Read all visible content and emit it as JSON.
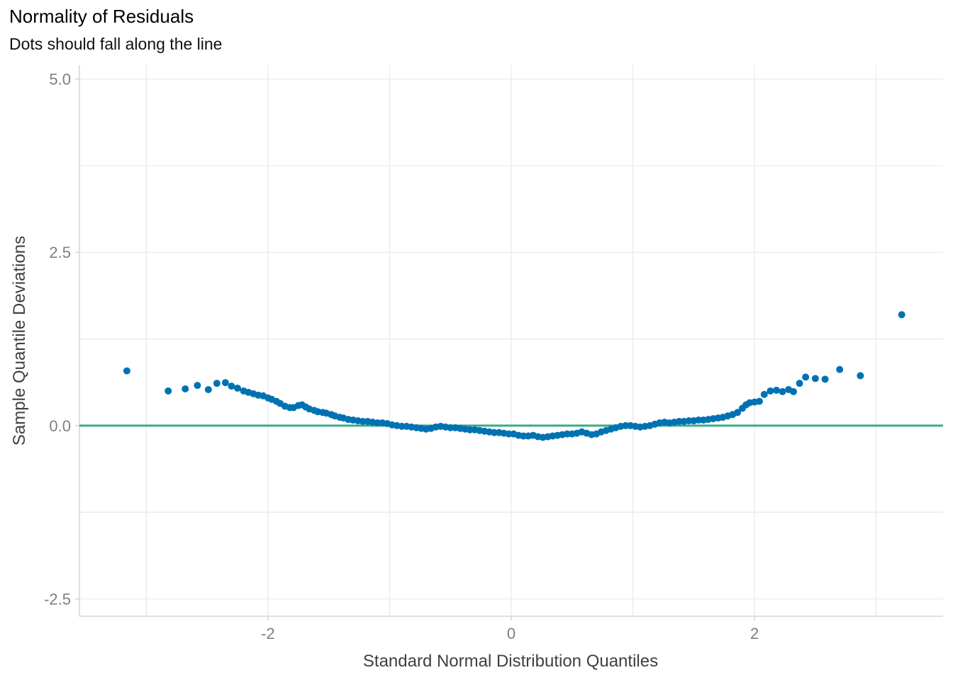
{
  "title": "Normality of Residuals",
  "subtitle": "Dots should fall along the line",
  "chart_data": {
    "type": "scatter",
    "title": "Normality of Residuals",
    "subtitle": "Dots should fall along the line",
    "xlabel": "Standard Normal Distribution Quantiles",
    "ylabel": "Sample Quantile Deviations",
    "xlim": [
      -3.55,
      3.55
    ],
    "ylim": [
      -2.75,
      5.2
    ],
    "x_ticks": [
      -2,
      0,
      2
    ],
    "x_tick_labels": [
      "-2",
      "0",
      "2"
    ],
    "x_minor_ticks": [
      -3,
      -1,
      1,
      3
    ],
    "y_ticks": [
      -2.5,
      0.0,
      2.5,
      5.0
    ],
    "y_tick_labels": [
      "-2.5",
      "0.0",
      "2.5",
      "5.0"
    ],
    "y_minor_ticks": [
      -1.25,
      1.25,
      3.75
    ],
    "grid": true,
    "reference_line": {
      "y": 0,
      "color": "#3aaa85"
    },
    "point_color": "#0072b2",
    "points": [
      [
        -3.16,
        0.79
      ],
      [
        -2.82,
        0.5
      ],
      [
        -2.68,
        0.53
      ],
      [
        -2.58,
        0.58
      ],
      [
        -2.49,
        0.52
      ],
      [
        -2.42,
        0.61
      ],
      [
        -2.35,
        0.62
      ],
      [
        -2.3,
        0.57
      ],
      [
        -2.25,
        0.54
      ],
      [
        -2.2,
        0.5
      ],
      [
        -2.16,
        0.48
      ],
      [
        -2.12,
        0.46
      ],
      [
        -2.08,
        0.44
      ],
      [
        -2.04,
        0.43
      ],
      [
        -2.0,
        0.4
      ],
      [
        -1.97,
        0.38
      ],
      [
        -1.93,
        0.35
      ],
      [
        -1.9,
        0.32
      ],
      [
        -1.86,
        0.28
      ],
      [
        -1.82,
        0.26
      ],
      [
        -1.79,
        0.26
      ],
      [
        -1.75,
        0.29
      ],
      [
        -1.72,
        0.3
      ],
      [
        -1.69,
        0.27
      ],
      [
        -1.66,
        0.24
      ],
      [
        -1.62,
        0.22
      ],
      [
        -1.59,
        0.2
      ],
      [
        -1.55,
        0.19
      ],
      [
        -1.52,
        0.18
      ],
      [
        -1.48,
        0.16
      ],
      [
        -1.45,
        0.14
      ],
      [
        -1.41,
        0.12
      ],
      [
        -1.38,
        0.11
      ],
      [
        -1.34,
        0.09
      ],
      [
        -1.3,
        0.08
      ],
      [
        -1.26,
        0.07
      ],
      [
        -1.22,
        0.06
      ],
      [
        -1.18,
        0.06
      ],
      [
        -1.14,
        0.05
      ],
      [
        -1.1,
        0.04
      ],
      [
        -1.06,
        0.04
      ],
      [
        -1.02,
        0.03
      ],
      [
        -0.98,
        0.01
      ],
      [
        -0.94,
        0.0
      ],
      [
        -0.9,
        -0.01
      ],
      [
        -0.86,
        -0.01
      ],
      [
        -0.82,
        -0.02
      ],
      [
        -0.78,
        -0.03
      ],
      [
        -0.74,
        -0.04
      ],
      [
        -0.7,
        -0.05
      ],
      [
        -0.66,
        -0.04
      ],
      [
        -0.62,
        -0.02
      ],
      [
        -0.58,
        -0.01
      ],
      [
        -0.54,
        -0.02
      ],
      [
        -0.5,
        -0.03
      ],
      [
        -0.46,
        -0.03
      ],
      [
        -0.42,
        -0.04
      ],
      [
        -0.38,
        -0.05
      ],
      [
        -0.34,
        -0.06
      ],
      [
        -0.3,
        -0.06
      ],
      [
        -0.26,
        -0.07
      ],
      [
        -0.22,
        -0.08
      ],
      [
        -0.18,
        -0.09
      ],
      [
        -0.14,
        -0.1
      ],
      [
        -0.1,
        -0.1
      ],
      [
        -0.06,
        -0.11
      ],
      [
        -0.02,
        -0.12
      ],
      [
        0.02,
        -0.12
      ],
      [
        0.06,
        -0.14
      ],
      [
        0.1,
        -0.15
      ],
      [
        0.14,
        -0.15
      ],
      [
        0.18,
        -0.14
      ],
      [
        0.22,
        -0.16
      ],
      [
        0.26,
        -0.17
      ],
      [
        0.3,
        -0.16
      ],
      [
        0.34,
        -0.15
      ],
      [
        0.38,
        -0.14
      ],
      [
        0.42,
        -0.13
      ],
      [
        0.46,
        -0.12
      ],
      [
        0.5,
        -0.12
      ],
      [
        0.54,
        -0.11
      ],
      [
        0.58,
        -0.09
      ],
      [
        0.62,
        -0.11
      ],
      [
        0.66,
        -0.13
      ],
      [
        0.7,
        -0.12
      ],
      [
        0.74,
        -0.09
      ],
      [
        0.78,
        -0.07
      ],
      [
        0.82,
        -0.05
      ],
      [
        0.86,
        -0.03
      ],
      [
        0.9,
        -0.01
      ],
      [
        0.94,
        0.0
      ],
      [
        0.98,
        0.0
      ],
      [
        1.02,
        -0.01
      ],
      [
        1.06,
        -0.02
      ],
      [
        1.1,
        -0.01
      ],
      [
        1.14,
        0.0
      ],
      [
        1.18,
        0.02
      ],
      [
        1.22,
        0.04
      ],
      [
        1.26,
        0.05
      ],
      [
        1.3,
        0.04
      ],
      [
        1.34,
        0.05
      ],
      [
        1.38,
        0.06
      ],
      [
        1.42,
        0.06
      ],
      [
        1.46,
        0.07
      ],
      [
        1.5,
        0.07
      ],
      [
        1.54,
        0.08
      ],
      [
        1.58,
        0.08
      ],
      [
        1.62,
        0.09
      ],
      [
        1.66,
        0.1
      ],
      [
        1.7,
        0.11
      ],
      [
        1.74,
        0.12
      ],
      [
        1.78,
        0.14
      ],
      [
        1.82,
        0.16
      ],
      [
        1.86,
        0.19
      ],
      [
        1.9,
        0.25
      ],
      [
        1.93,
        0.3
      ],
      [
        1.96,
        0.33
      ],
      [
        2.0,
        0.34
      ],
      [
        2.04,
        0.35
      ],
      [
        2.08,
        0.45
      ],
      [
        2.13,
        0.5
      ],
      [
        2.18,
        0.51
      ],
      [
        2.23,
        0.49
      ],
      [
        2.28,
        0.52
      ],
      [
        2.32,
        0.49
      ],
      [
        2.37,
        0.61
      ],
      [
        2.42,
        0.7
      ],
      [
        2.5,
        0.68
      ],
      [
        2.58,
        0.67
      ],
      [
        2.7,
        0.81
      ],
      [
        2.87,
        0.72
      ],
      [
        3.21,
        1.6
      ]
    ]
  }
}
